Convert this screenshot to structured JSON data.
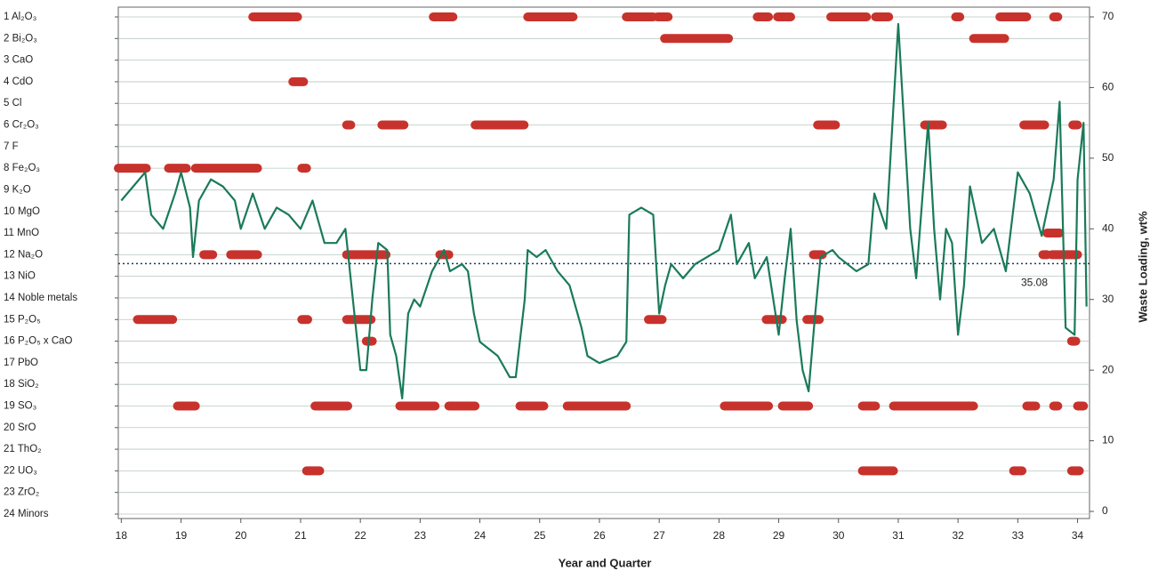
{
  "chart_data": {
    "type": "line",
    "xlabel": "Year and Quarter",
    "ylabel": "Waste Loading, wt%",
    "xlim": [
      17.95,
      34.2
    ],
    "xticks": [
      18,
      19,
      20,
      21,
      22,
      23,
      24,
      25,
      26,
      27,
      28,
      29,
      30,
      31,
      32,
      33,
      34
    ],
    "y2lim": [
      0,
      70
    ],
    "y2ticks": [
      0,
      10,
      20,
      30,
      40,
      50,
      60,
      70
    ],
    "grid": true,
    "reference": {
      "value": 35.08,
      "label": "35.08"
    },
    "constraint_color": "#c8322c",
    "constraints": [
      {
        "name": "1  Al₂O₃",
        "segments": [
          [
            20.2,
            20.95
          ],
          [
            23.22,
            23.55
          ],
          [
            24.8,
            25.56
          ],
          [
            26.45,
            26.9
          ],
          [
            26.97,
            27.15
          ],
          [
            28.64,
            28.83
          ],
          [
            28.98,
            29.2
          ],
          [
            29.87,
            30.47
          ],
          [
            30.62,
            30.84
          ],
          [
            31.96,
            32.03
          ],
          [
            32.7,
            33.15
          ],
          [
            33.6,
            33.67
          ]
        ]
      },
      {
        "name": "2  Bi₂O₃",
        "segments": [
          [
            27.09,
            28.16
          ],
          [
            32.26,
            32.78
          ]
        ]
      },
      {
        "name": "3  CaO",
        "segments": []
      },
      {
        "name": "4  CdO",
        "segments": [
          [
            20.87,
            21.05
          ]
        ]
      },
      {
        "name": "5  Cl",
        "segments": []
      },
      {
        "name": "6  Cr₂O₃",
        "segments": [
          [
            21.77,
            21.84
          ],
          [
            22.36,
            22.73
          ],
          [
            23.92,
            24.74
          ],
          [
            29.65,
            29.95
          ],
          [
            31.44,
            31.74
          ],
          [
            33.1,
            33.45
          ],
          [
            33.92,
            34.0
          ]
        ]
      },
      {
        "name": "7  F",
        "segments": []
      },
      {
        "name": "8  Fe₂O₃",
        "segments": [
          [
            17.95,
            18.42
          ],
          [
            18.79,
            19.09
          ],
          [
            19.24,
            20.28
          ],
          [
            21.02,
            21.1
          ]
        ]
      },
      {
        "name": "9  K₂O",
        "segments": []
      },
      {
        "name": "10  MgO",
        "segments": []
      },
      {
        "name": "11  MnO",
        "segments": [
          [
            33.49,
            33.7
          ]
        ]
      },
      {
        "name": "12  Na₂O",
        "segments": [
          [
            19.38,
            19.53
          ],
          [
            19.83,
            20.28
          ],
          [
            21.77,
            22.43
          ],
          [
            23.33,
            23.48
          ],
          [
            29.58,
            29.73
          ],
          [
            33.42,
            33.49
          ],
          [
            33.57,
            34.0
          ]
        ]
      },
      {
        "name": "13  NiO",
        "segments": []
      },
      {
        "name": "14  Noble metals",
        "segments": []
      },
      {
        "name": "15  P₂O₅",
        "segments": [
          [
            18.27,
            18.86
          ],
          [
            21.02,
            21.12
          ],
          [
            21.77,
            22.18
          ],
          [
            26.82,
            27.05
          ],
          [
            28.79,
            29.06
          ],
          [
            29.47,
            29.68
          ]
        ]
      },
      {
        "name": "16  P₂O₅ x CaO",
        "segments": [
          [
            22.1,
            22.2
          ],
          [
            33.9,
            33.97
          ]
        ]
      },
      {
        "name": "17  PbO",
        "segments": []
      },
      {
        "name": "18  SiO₂",
        "segments": []
      },
      {
        "name": "19  SO₃",
        "segments": [
          [
            18.94,
            19.24
          ],
          [
            21.24,
            21.79
          ],
          [
            22.66,
            23.25
          ],
          [
            23.48,
            23.92
          ],
          [
            24.67,
            25.07
          ],
          [
            25.46,
            26.45
          ],
          [
            28.09,
            28.83
          ],
          [
            29.06,
            29.5
          ],
          [
            30.4,
            30.62
          ],
          [
            30.92,
            32.26
          ],
          [
            33.15,
            33.3
          ],
          [
            33.6,
            33.67
          ],
          [
            34.0,
            34.1
          ]
        ]
      },
      {
        "name": "20  SrO",
        "segments": []
      },
      {
        "name": "21  ThO₂",
        "segments": []
      },
      {
        "name": "22  UO₃",
        "segments": [
          [
            21.1,
            21.32
          ],
          [
            30.4,
            30.92
          ],
          [
            32.93,
            33.07
          ],
          [
            33.9,
            34.03
          ]
        ]
      },
      {
        "name": "23  ZrO₂",
        "segments": []
      },
      {
        "name": "24  Minors",
        "segments": []
      }
    ],
    "series": [
      {
        "name": "Waste Loading",
        "color": "#1a7a5a",
        "axis": "y2",
        "x": [
          18,
          18.2,
          18.4,
          18.5,
          18.7,
          18.9,
          19.0,
          19.15,
          19.2,
          19.3,
          19.5,
          19.7,
          19.9,
          20.0,
          20.2,
          20.4,
          20.6,
          20.8,
          21.0,
          21.2,
          21.4,
          21.6,
          21.75,
          21.9,
          22.0,
          22.1,
          22.2,
          22.3,
          22.45,
          22.5,
          22.6,
          22.7,
          22.8,
          22.9,
          23.0,
          23.2,
          23.4,
          23.5,
          23.7,
          23.8,
          23.9,
          24.0,
          24.3,
          24.5,
          24.6,
          24.75,
          24.8,
          24.95,
          25.1,
          25.3,
          25.5,
          25.7,
          25.8,
          26.0,
          26.3,
          26.45,
          26.5,
          26.7,
          26.9,
          27.0,
          27.1,
          27.2,
          27.4,
          27.6,
          27.8,
          28.0,
          28.2,
          28.3,
          28.5,
          28.6,
          28.8,
          29.0,
          29.1,
          29.2,
          29.3,
          29.4,
          29.5,
          29.6,
          29.7,
          29.9,
          30.0,
          30.3,
          30.5,
          30.6,
          30.8,
          31.0,
          31.2,
          31.3,
          31.5,
          31.6,
          31.7,
          31.8,
          31.9,
          32.0,
          32.1,
          32.2,
          32.4,
          32.6,
          32.8,
          33.0,
          33.2,
          33.4,
          33.6,
          33.7,
          33.8,
          33.95,
          34.0,
          34.1,
          34.15
        ],
        "values": [
          44,
          46,
          48,
          42,
          40,
          45,
          48,
          43,
          36,
          44,
          47,
          46,
          44,
          40,
          45,
          40,
          43,
          42,
          40,
          44,
          38,
          38,
          40,
          28,
          20,
          20,
          30,
          38,
          37,
          25,
          22,
          16,
          28,
          30,
          29,
          34,
          37,
          34,
          35,
          34,
          28,
          24,
          22,
          19,
          19,
          30,
          37,
          36,
          37,
          34,
          32,
          26,
          22,
          21,
          22,
          24,
          42,
          43,
          42,
          28,
          32,
          35,
          33,
          35,
          36,
          37,
          42,
          35,
          38,
          33,
          36,
          25,
          33,
          40,
          27,
          20,
          17,
          27,
          36,
          37,
          36,
          34,
          35,
          45,
          40,
          69,
          40,
          33,
          55,
          40,
          30,
          40,
          38,
          25,
          32,
          46,
          38,
          40,
          34,
          48,
          45,
          39,
          47,
          58,
          26,
          25,
          47,
          55,
          29
        ]
      }
    ]
  }
}
